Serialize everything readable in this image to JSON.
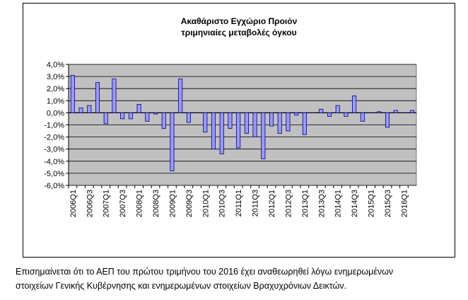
{
  "chart_data": {
    "type": "bar",
    "title": [
      "Ακαθάριστο Εγχώριο Προιόν",
      "τριμηνιαίες μεταβολές όγκου"
    ],
    "xlabel": "",
    "ylabel": "",
    "ylim": [
      -6.0,
      4.0
    ],
    "yticks": [
      "4,0%",
      "3,0%",
      "2,0%",
      "1,0%",
      "0,0%",
      "-1,0%",
      "-2,0%",
      "-3,0%",
      "-4,0%",
      "-5,0%",
      "-6,0%"
    ],
    "ytick_values": [
      4,
      3,
      2,
      1,
      0,
      -1,
      -2,
      -3,
      -4,
      -5,
      -6
    ],
    "grid": true,
    "legend": "none",
    "colors": {
      "bar": "#9999ff",
      "bar_edge": "#000080",
      "plot_bg": "#c0c0c0",
      "grid": "#000000"
    },
    "categories": [
      "2006Q1",
      "2006Q2",
      "2006Q3",
      "2006Q4",
      "2007Q1",
      "2007Q2",
      "2007Q3",
      "2007Q4",
      "2008Q1",
      "2008Q2",
      "2008Q3",
      "2008Q4",
      "2009Q1",
      "2009Q2",
      "2009Q3",
      "2009Q4",
      "2010Q1",
      "2010Q2",
      "2010Q3",
      "2010Q4",
      "2011Q1",
      "2011Q2",
      "2011Q3",
      "2011Q4",
      "2012Q1",
      "2012Q2",
      "2012Q3",
      "2012Q4",
      "2013Q1",
      "2013Q2",
      "2013Q3",
      "2013Q4",
      "2014Q1",
      "2014Q2",
      "2014Q3",
      "2014Q4",
      "2015Q1",
      "2015Q2",
      "2015Q3",
      "2015Q4",
      "2016Q1",
      "2016Q2"
    ],
    "tick_labels": [
      "2006Q1",
      "2006Q3",
      "2007Q1",
      "2007Q3",
      "2008Q1",
      "2008Q3",
      "2009Q1",
      "2009Q3",
      "2010Q1",
      "2010Q3",
      "2011Q1",
      "2011Q3",
      "2012Q1",
      "2012Q3",
      "2013Q1",
      "2013Q3",
      "2014Q1",
      "2014Q3",
      "2015Q1",
      "2015Q3",
      "2016Q1"
    ],
    "values": [
      3.1,
      0.4,
      0.6,
      2.5,
      -0.9,
      2.8,
      -0.5,
      -0.5,
      0.7,
      -0.7,
      -0.1,
      -1.3,
      -4.8,
      2.8,
      -0.8,
      0.0,
      -1.6,
      -3.0,
      -3.4,
      -1.3,
      -2.9,
      -1.7,
      -2.0,
      -3.8,
      -1.1,
      -1.7,
      -1.5,
      -0.2,
      -1.8,
      0.0,
      0.3,
      -0.3,
      0.6,
      -0.3,
      1.4,
      -0.7,
      0.0,
      0.1,
      -1.2,
      0.2,
      0.0,
      0.2
    ]
  },
  "note": {
    "line1": "Επισημαίνεται ότι το ΑΕΠ του πρώτου τριμήνου του 2016 έχει αναθεωρηθεί λόγω ενημερωμένων",
    "line2": "στοιχείων Γενικής Κυβέρνησης και ενημερωμένων στοιχείων Βραχυχρόνιων Δεικτών."
  }
}
